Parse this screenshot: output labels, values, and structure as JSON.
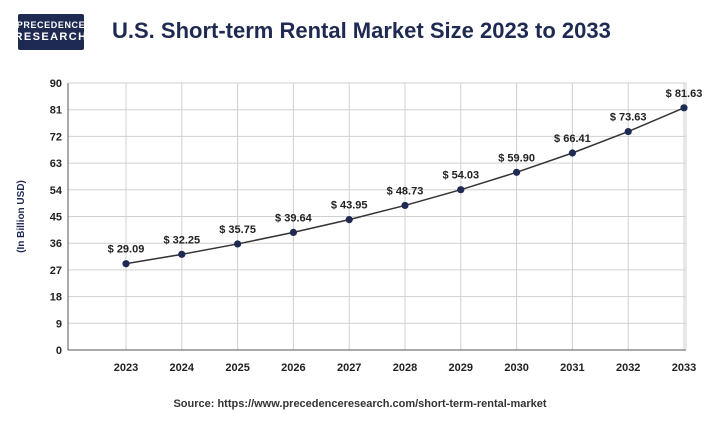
{
  "brand": {
    "line1": "PRECEDENCE",
    "line2": "RESEARCH"
  },
  "colors": {
    "navy": "#1f2a52",
    "line": "#333333",
    "grid": "#d0d0d0"
  },
  "source": "Source: https://www.precedenceresearch.com/short-term-rental-market",
  "chart_data": {
    "type": "line",
    "title": "U.S. Short-term Rental Market Size 2023 to 2033",
    "ylabel": "(In Billion USD)",
    "xlabel": "",
    "ylim": [
      0,
      90
    ],
    "yticks": [
      0,
      9,
      18,
      27,
      36,
      45,
      54,
      63,
      72,
      81,
      90
    ],
    "grid": "both",
    "categories": [
      "2023",
      "2024",
      "2025",
      "2026",
      "2027",
      "2028",
      "2029",
      "2030",
      "2031",
      "2032",
      "2033"
    ],
    "series": [
      {
        "values": [
          29.09,
          32.25,
          35.75,
          39.64,
          43.95,
          48.73,
          54.03,
          59.9,
          66.41,
          73.63,
          81.63
        ],
        "labels": [
          "$ 29.09",
          "$ 32.25",
          "$ 35.75",
          "$ 39.64",
          "$ 43.95",
          "$ 48.73",
          "$ 54.03",
          "$ 59.90",
          "$ 66.41",
          "$ 73.63",
          "$ 81.63"
        ]
      }
    ]
  }
}
